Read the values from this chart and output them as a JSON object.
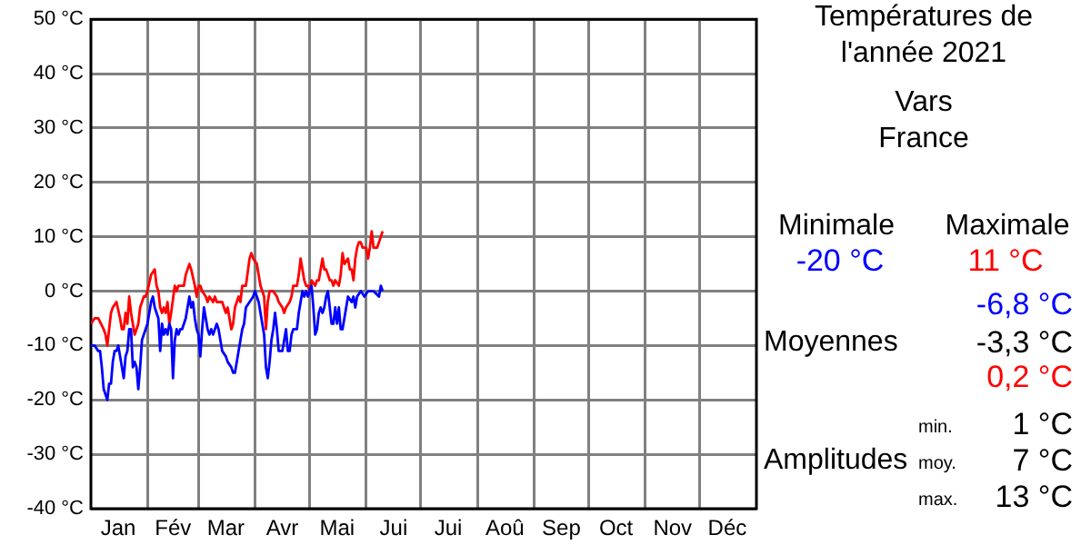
{
  "chart_data": {
    "type": "line",
    "title": "Températures de l'année 2021",
    "subtitle": "Vars\nFrance",
    "xlim": [
      "2021-01-01",
      "2022-01-01"
    ],
    "xticks": [
      {
        "value": "2021-01-16",
        "label": "Jan"
      },
      {
        "value": "2021-02-01",
        "label": null
      },
      {
        "value": "2021-02-15",
        "label": "Fév"
      },
      {
        "value": "2021-03-01",
        "label": null
      },
      {
        "value": "2021-03-16",
        "label": "Mar"
      },
      {
        "value": "2021-04-01",
        "label": null
      },
      {
        "value": "2021-04-16",
        "label": "Avr"
      },
      {
        "value": "2021-05-01",
        "label": null
      },
      {
        "value": "2021-05-16",
        "label": "Mai"
      },
      {
        "value": "2021-06-01",
        "label": null
      },
      {
        "value": "2021-06-16",
        "label": "Jui"
      },
      {
        "value": "2021-07-01",
        "label": null
      },
      {
        "value": "2021-07-16",
        "label": "Jui"
      },
      {
        "value": "2021-08-01",
        "label": null
      },
      {
        "value": "2021-08-16",
        "label": "Aoû"
      },
      {
        "value": "2021-09-01",
        "label": null
      },
      {
        "value": "2021-09-16",
        "label": "Sep"
      },
      {
        "value": "2021-10-01",
        "label": null
      },
      {
        "value": "2021-10-16",
        "label": "Oct"
      },
      {
        "value": "2021-11-01",
        "label": null
      },
      {
        "value": "2021-11-16",
        "label": "Nov"
      },
      {
        "value": "2021-12-01",
        "label": null
      },
      {
        "value": "2021-12-16",
        "label": "Déc"
      }
    ],
    "ylim": [
      -40,
      50
    ],
    "yticks": [
      {
        "value": -40,
        "label": "-40 °C"
      },
      {
        "value": -30,
        "label": "-30 °C"
      },
      {
        "value": -20,
        "label": "-20 °C"
      },
      {
        "value": -10,
        "label": "-10 °C"
      },
      {
        "value": 0,
        "label": "0 °C"
      },
      {
        "value": 10,
        "label": "10 °C"
      },
      {
        "value": 20,
        "label": "20 °C"
      },
      {
        "value": 30,
        "label": "30 °C"
      },
      {
        "value": 40,
        "label": "40 °C"
      },
      {
        "value": 50,
        "label": "50 °C"
      }
    ],
    "grid": true,
    "series": [
      {
        "color": "#0000ff",
        "x": [
          "2021-01-01",
          "2021-01-03",
          "2021-01-05",
          "2021-01-06",
          "2021-01-07",
          "2021-01-08",
          "2021-01-09",
          "2021-01-10",
          "2021-01-11",
          "2021-01-12",
          "2021-01-13",
          "2021-01-14",
          "2021-01-15",
          "2021-01-16",
          "2021-01-17",
          "2021-01-18",
          "2021-01-19",
          "2021-01-20",
          "2021-01-21",
          "2021-01-22",
          "2021-01-23",
          "2021-01-24",
          "2021-01-25",
          "2021-01-26",
          "2021-01-27",
          "2021-01-28",
          "2021-01-29",
          "2021-01-30",
          "2021-01-31",
          "2021-02-01",
          "2021-02-03",
          "2021-02-04",
          "2021-02-05",
          "2021-02-07",
          "2021-02-08",
          "2021-02-09",
          "2021-02-10",
          "2021-02-11",
          "2021-02-12",
          "2021-02-13",
          "2021-02-14",
          "2021-02-15",
          "2021-02-16",
          "2021-02-17",
          "2021-02-18",
          "2021-02-19",
          "2021-02-20",
          "2021-02-22",
          "2021-02-23",
          "2021-02-24",
          "2021-02-25",
          "2021-02-26",
          "2021-02-27",
          "2021-02-28",
          "2021-03-01",
          "2021-03-02",
          "2021-03-03",
          "2021-03-04",
          "2021-03-05",
          "2021-03-06",
          "2021-03-07",
          "2021-03-08",
          "2021-03-09",
          "2021-03-11",
          "2021-03-12",
          "2021-03-13",
          "2021-03-14",
          "2021-03-16",
          "2021-03-17",
          "2021-03-19",
          "2021-03-20",
          "2021-03-21",
          "2021-03-22",
          "2021-03-23",
          "2021-03-24",
          "2021-03-25",
          "2021-03-26",
          "2021-03-27",
          "2021-03-29",
          "2021-03-31",
          "2021-04-01",
          "2021-04-02",
          "2021-04-03",
          "2021-04-04",
          "2021-04-06",
          "2021-04-07",
          "2021-04-08",
          "2021-04-09",
          "2021-04-10",
          "2021-04-11",
          "2021-04-12",
          "2021-04-13",
          "2021-04-14",
          "2021-04-16",
          "2021-04-17",
          "2021-04-18",
          "2021-04-19",
          "2021-04-20",
          "2021-04-21",
          "2021-04-22",
          "2021-04-24",
          "2021-04-25",
          "2021-04-26",
          "2021-04-27",
          "2021-04-28",
          "2021-04-29",
          "2021-04-30",
          "2021-05-01",
          "2021-05-02",
          "2021-05-03",
          "2021-05-04",
          "2021-05-05",
          "2021-05-06",
          "2021-05-07",
          "2021-05-08",
          "2021-05-09",
          "2021-05-10",
          "2021-05-11",
          "2021-05-12",
          "2021-05-13",
          "2021-05-14",
          "2021-05-15",
          "2021-05-16",
          "2021-05-17",
          "2021-05-18",
          "2021-05-19",
          "2021-05-20",
          "2021-05-21",
          "2021-05-22",
          "2021-05-24",
          "2021-05-25",
          "2021-05-26",
          "2021-05-27",
          "2021-05-29",
          "2021-05-31",
          "2021-06-02",
          "2021-06-05",
          "2021-06-08",
          "2021-06-09",
          "2021-06-10"
        ],
        "values": [
          -10,
          -10,
          -11,
          -11,
          -14,
          -18,
          -19,
          -20,
          -17,
          -17,
          -13,
          -11,
          -11,
          -10,
          -12,
          -14,
          -16,
          -12,
          -11,
          -7,
          -7,
          -14,
          -13,
          -14,
          -18,
          -14,
          -9,
          -8,
          -7,
          -6,
          -2,
          -1,
          -3,
          -5,
          -11,
          -6,
          -8,
          -7,
          -8,
          -6,
          -7,
          -16,
          -9,
          -7,
          -8,
          -7,
          -7,
          -5,
          -3,
          -1,
          -3,
          -2,
          -5,
          -7,
          -8,
          -12,
          -7,
          -3,
          -5,
          -7,
          -8,
          -7,
          -8,
          -6,
          -7,
          -9,
          -11,
          -12,
          -13,
          -14,
          -15,
          -15,
          -13,
          -11,
          -9,
          -7,
          -6,
          -3,
          -2,
          -1,
          0,
          -1,
          -2,
          -4,
          -8,
          -14,
          -16,
          -13,
          -9,
          -7,
          -4,
          -7,
          -11,
          -11,
          -9,
          -7,
          -11,
          -11,
          -8,
          -7,
          -7,
          -4,
          -2,
          0,
          -1,
          0,
          -1,
          0,
          1,
          -3,
          -8,
          -7,
          -4,
          -3,
          -4,
          -3,
          -1,
          0,
          -3,
          -6,
          -6,
          -3,
          -6,
          -3,
          -7,
          -7,
          -5,
          -3,
          -1,
          -2,
          -1,
          -3,
          -1,
          0,
          -1,
          0,
          0,
          -1,
          1,
          0
        ]
      },
      {
        "color": "#ff0000",
        "x": [
          "2021-01-01",
          "2021-01-03",
          "2021-01-05",
          "2021-01-08",
          "2021-01-09",
          "2021-01-10",
          "2021-01-12",
          "2021-01-13",
          "2021-01-15",
          "2021-01-17",
          "2021-01-18",
          "2021-01-19",
          "2021-01-20",
          "2021-01-21",
          "2021-01-22",
          "2021-01-23",
          "2021-01-24",
          "2021-01-25",
          "2021-01-27",
          "2021-01-28",
          "2021-01-29",
          "2021-01-30",
          "2021-01-31",
          "2021-02-01",
          "2021-02-03",
          "2021-02-05",
          "2021-02-06",
          "2021-02-07",
          "2021-02-08",
          "2021-02-09",
          "2021-02-10",
          "2021-02-11",
          "2021-02-12",
          "2021-02-13",
          "2021-02-14",
          "2021-02-16",
          "2021-02-17",
          "2021-02-18",
          "2021-02-20",
          "2021-02-21",
          "2021-02-22",
          "2021-02-24",
          "2021-02-25",
          "2021-02-27",
          "2021-02-28",
          "2021-03-01",
          "2021-03-02",
          "2021-03-03",
          "2021-03-05",
          "2021-03-06",
          "2021-03-07",
          "2021-03-09",
          "2021-03-10",
          "2021-03-11",
          "2021-03-12",
          "2021-03-14",
          "2021-03-15",
          "2021-03-16",
          "2021-03-17",
          "2021-03-19",
          "2021-03-20",
          "2021-03-21",
          "2021-03-23",
          "2021-03-24",
          "2021-03-25",
          "2021-03-26",
          "2021-03-27",
          "2021-03-29",
          "2021-03-30",
          "2021-03-31",
          "2021-04-02",
          "2021-04-03",
          "2021-04-04",
          "2021-04-06",
          "2021-04-07",
          "2021-04-08",
          "2021-04-09",
          "2021-04-11",
          "2021-04-13",
          "2021-04-14",
          "2021-04-16",
          "2021-04-17",
          "2021-04-18",
          "2021-04-20",
          "2021-04-21",
          "2021-04-22",
          "2021-04-24",
          "2021-04-25",
          "2021-04-26",
          "2021-04-27",
          "2021-04-28",
          "2021-04-29",
          "2021-04-30",
          "2021-05-01",
          "2021-05-02",
          "2021-05-04",
          "2021-05-05",
          "2021-05-06",
          "2021-05-08",
          "2021-05-09",
          "2021-05-10",
          "2021-05-12",
          "2021-05-13",
          "2021-05-14",
          "2021-05-15",
          "2021-05-17",
          "2021-05-18",
          "2021-05-19",
          "2021-05-20",
          "2021-05-22",
          "2021-05-23",
          "2021-05-24",
          "2021-05-25",
          "2021-05-26",
          "2021-05-27",
          "2021-05-28",
          "2021-05-29",
          "2021-05-30",
          "2021-06-01",
          "2021-06-02",
          "2021-06-03",
          "2021-06-04",
          "2021-06-05",
          "2021-06-07",
          "2021-06-08",
          "2021-06-09",
          "2021-06-10"
        ],
        "values": [
          -6,
          -5,
          -5,
          -7,
          -8,
          -10,
          -4,
          -3,
          -2,
          -5,
          -7,
          -7,
          -4,
          -6,
          -1,
          -4,
          -6,
          -8,
          -6,
          -3,
          -2,
          -1,
          -1,
          0,
          3,
          4,
          1,
          0,
          -3,
          -4,
          -3,
          -4,
          -2,
          -6,
          -4,
          1,
          0,
          1,
          1,
          1,
          3,
          5,
          4,
          1,
          -1,
          1,
          1,
          0,
          -1,
          -2,
          -1,
          -2,
          -1,
          -2,
          -2,
          -2,
          -3,
          -4,
          -3,
          -7,
          -6,
          -3,
          -1,
          -2,
          1,
          1,
          1,
          6,
          7,
          6,
          5,
          3,
          1,
          -1,
          -7,
          -2,
          0,
          0,
          -1,
          -2,
          -3,
          -4,
          -3,
          -2,
          -1,
          1,
          1,
          3,
          6,
          4,
          2,
          1,
          1,
          0,
          2,
          1,
          2,
          2,
          6,
          4,
          4,
          2,
          2,
          1,
          2,
          1,
          3,
          7,
          5,
          6,
          4,
          4,
          2,
          6,
          8,
          9,
          9,
          8,
          8,
          6,
          8,
          11,
          8,
          8,
          9,
          10,
          11
        ]
      }
    ],
    "annotations": [
      "Minimale",
      "Maximale",
      "-20 °C",
      "11 °C",
      "-6,8 °C",
      "Moyennes",
      "-3,3 °C",
      "0,2 °C",
      "min.",
      "1 °C",
      "Amplitudes",
      "moy.",
      "7 °C",
      "max.",
      "13 °C"
    ]
  }
}
